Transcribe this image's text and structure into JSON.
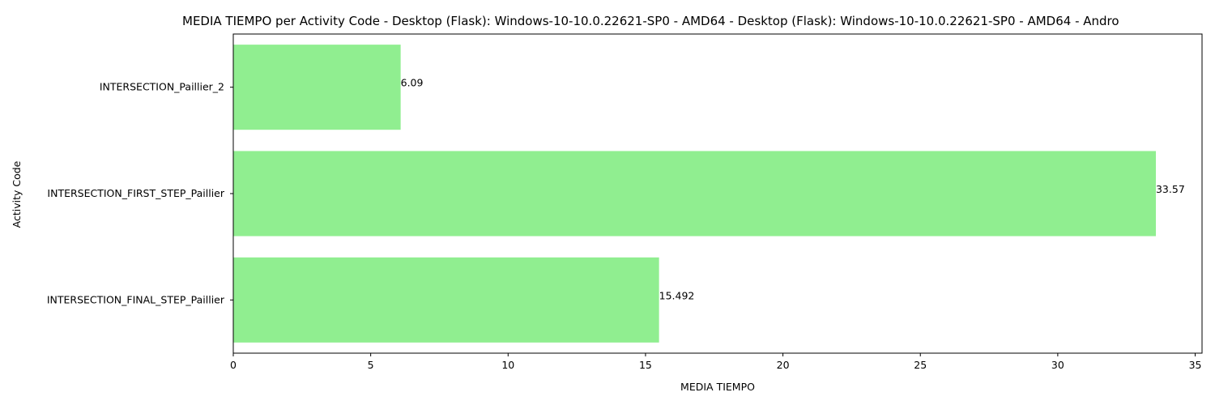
{
  "chart_data": {
    "type": "bar",
    "orientation": "horizontal",
    "title": "MEDIA TIEMPO per Activity Code - Desktop (Flask): Windows-10-10.0.22621-SP0 - AMD64 - Desktop (Flask): Windows-10-10.0.22621-SP0 - AMD64 - Andro",
    "xlabel": "MEDIA TIEMPO",
    "ylabel": "Activity Code",
    "categories": [
      "INTERSECTION_Paillier_2",
      "INTERSECTION_FIRST_STEP_Paillier",
      "INTERSECTION_FINAL_STEP_Paillier"
    ],
    "values": [
      6.09,
      33.57,
      15.492
    ],
    "value_labels": [
      "6.09",
      "33.57",
      "15.492"
    ],
    "xlim": [
      0,
      35.25
    ],
    "xticks": [
      0,
      5,
      10,
      15,
      20,
      25,
      30,
      35
    ],
    "xtick_labels": [
      "0",
      "5",
      "10",
      "15",
      "20",
      "25",
      "30",
      "35"
    ],
    "bar_color": "#90ee90",
    "grid": false,
    "legend": false
  }
}
